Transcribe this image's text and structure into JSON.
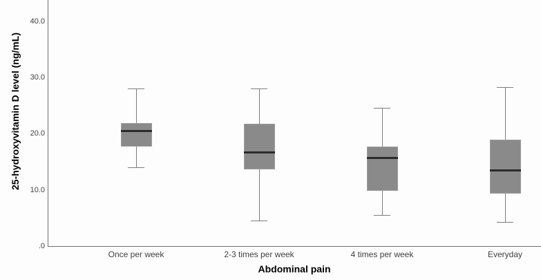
{
  "chart_data": {
    "type": "box",
    "title": "",
    "xlabel": "Abdominal pain",
    "ylabel": "25-hydroxyvitamin D level (ng/mL)",
    "ylim": [
      0,
      43.8
    ],
    "grid": false,
    "legend": false,
    "yticks": [
      {
        "value": 0,
        "label": ".0"
      },
      {
        "value": 10,
        "label": "10.0"
      },
      {
        "value": 20,
        "label": "20.0"
      },
      {
        "value": 30,
        "label": "30.0"
      },
      {
        "value": 40,
        "label": "40.0"
      }
    ],
    "categories": [
      "Once per week",
      "2-3 times per week",
      "4 times per week",
      "Everyday"
    ],
    "series": [
      {
        "category": "Once per week",
        "min": 14.0,
        "q1": 17.7,
        "median": 20.6,
        "q3": 21.9,
        "max": 28.0
      },
      {
        "category": "2-3 times per week",
        "min": 4.5,
        "q1": 13.6,
        "median": 16.7,
        "q3": 21.8,
        "max": 28.0
      },
      {
        "category": "4 times per week",
        "min": 5.5,
        "q1": 9.9,
        "median": 15.8,
        "q3": 17.7,
        "max": 24.6
      },
      {
        "category": "Everyday",
        "min": 4.3,
        "q1": 9.4,
        "median": 13.5,
        "q3": 19.0,
        "max": 28.3
      }
    ],
    "colors": {
      "box_fill": "#8a8a8a",
      "box_border": "#9d9d9d",
      "median": "#2b2b2b",
      "whisker": "#7c7c7c",
      "axis": "#6e6e6e",
      "tick_text": "#3f3f3f",
      "title_text": "#000000"
    }
  }
}
